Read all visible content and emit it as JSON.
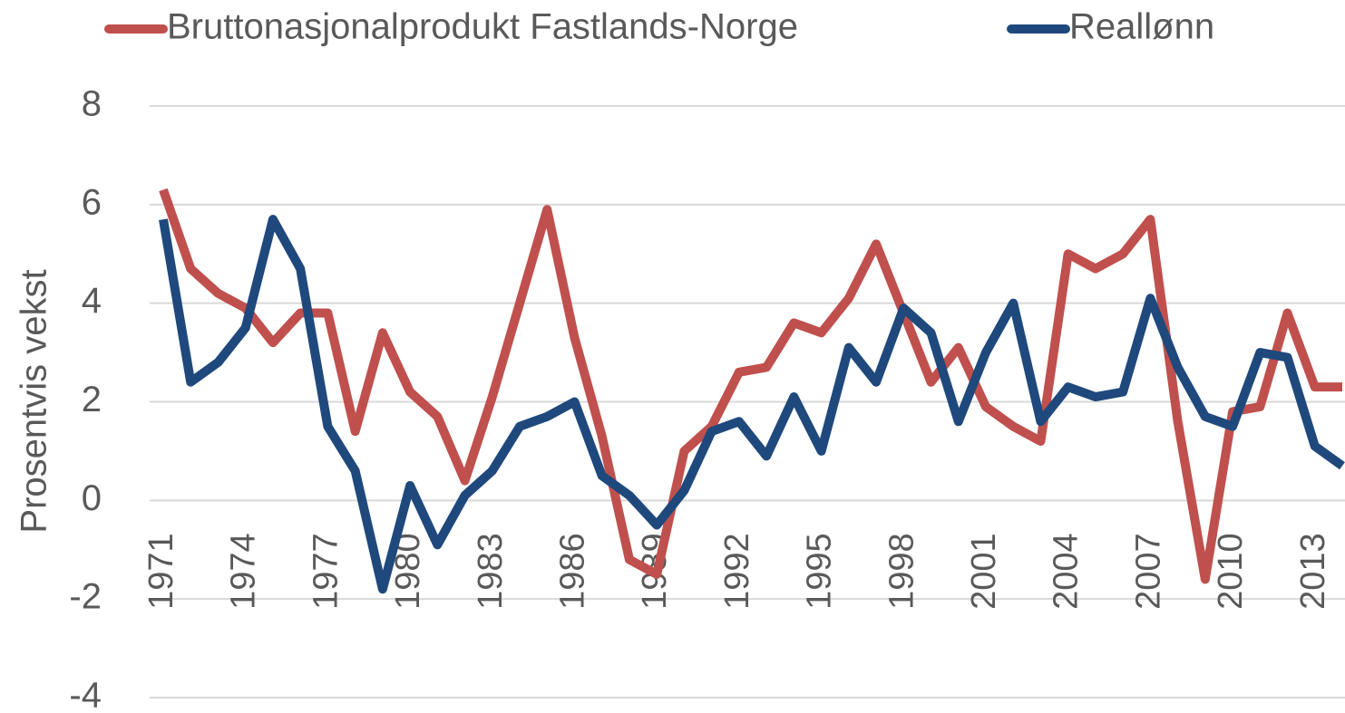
{
  "chart_data": {
    "type": "line",
    "y_label": "Prosentvis vekst",
    "categories": [
      "1971",
      null,
      null,
      "1974",
      null,
      null,
      "1977",
      null,
      null,
      "1980",
      null,
      null,
      "1983",
      null,
      null,
      "1986",
      null,
      null,
      "1989",
      null,
      null,
      "1992",
      null,
      null,
      "1995",
      null,
      null,
      "1998",
      null,
      null,
      "2001",
      null,
      null,
      "2004",
      null,
      null,
      "2007",
      null,
      null,
      "2010",
      null,
      null,
      "2013",
      null
    ],
    "series": [
      {
        "name": "Bruttonasjonalprodukt Fastlands-Norge",
        "color": "#c0504d",
        "values": [
          6.3,
          4.7,
          4.2,
          3.9,
          3.2,
          3.8,
          3.8,
          1.4,
          3.4,
          2.2,
          1.7,
          0.4,
          2.1,
          4.0,
          5.9,
          3.3,
          1.3,
          -1.2,
          -1.5,
          1.0,
          1.5,
          2.6,
          2.7,
          3.6,
          3.4,
          4.1,
          5.2,
          3.8,
          2.4,
          3.1,
          1.9,
          1.5,
          1.2,
          5.0,
          4.7,
          5.0,
          5.7,
          1.6,
          -1.6,
          1.8,
          1.9,
          3.8,
          2.3,
          2.3
        ]
      },
      {
        "name": "Reallønn",
        "color": "#1f497d",
        "values": [
          5.7,
          2.4,
          2.8,
          3.5,
          5.7,
          4.7,
          1.5,
          0.6,
          -1.8,
          0.3,
          -0.9,
          0.1,
          0.6,
          1.5,
          1.7,
          2.0,
          0.5,
          0.1,
          -0.5,
          0.2,
          1.4,
          1.6,
          0.9,
          2.1,
          1.0,
          3.1,
          2.4,
          3.9,
          3.4,
          1.6,
          3.0,
          4.0,
          1.6,
          2.3,
          2.1,
          2.2,
          4.1,
          2.7,
          1.7,
          1.5,
          3.0,
          2.9,
          1.1,
          0.7
        ]
      }
    ],
    "ylim": [
      -4,
      8
    ],
    "yticks": [
      -4,
      -2,
      0,
      2,
      4,
      6,
      8
    ],
    "grid": true,
    "legend": "top"
  }
}
